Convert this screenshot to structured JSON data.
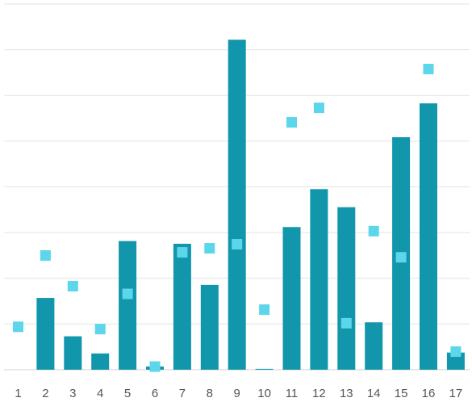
{
  "chart_data": {
    "type": "bar",
    "categories": [
      "1",
      "2",
      "3",
      "4",
      "5",
      "6",
      "7",
      "8",
      "9",
      "10",
      "11",
      "12",
      "13",
      "14",
      "15",
      "16",
      "17"
    ],
    "series": [
      {
        "kind": "bar",
        "color": "#1196ab",
        "values": [
          0,
          159,
          74,
          36,
          285,
          7,
          279,
          188,
          731,
          2,
          316,
          400,
          360,
          105,
          515,
          590,
          38
        ]
      },
      {
        "kind": "marker",
        "color": "#5bd6ea",
        "values": [
          95,
          253,
          185,
          90,
          168,
          7,
          260,
          269,
          278,
          133,
          548,
          580,
          103,
          307,
          249,
          666,
          40
        ]
      }
    ],
    "ylim": [
      0,
      810
    ],
    "grid": true
  }
}
